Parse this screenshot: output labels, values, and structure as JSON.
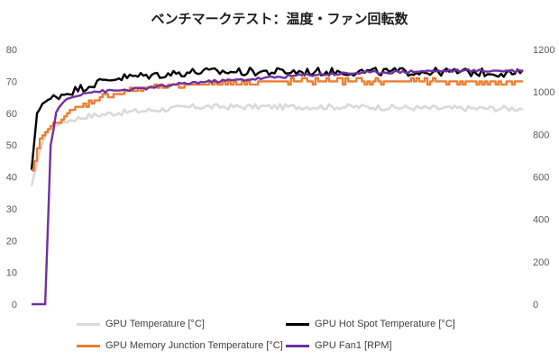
{
  "chart_data": {
    "type": "line",
    "title": "ベンチマークテスト：温度・ファン回転数",
    "y_left": {
      "min": 0,
      "max": 80,
      "ticks": [
        0,
        10,
        20,
        30,
        40,
        50,
        60,
        70,
        80
      ]
    },
    "y_right": {
      "min": 0,
      "max": 1200,
      "ticks": [
        0,
        200,
        400,
        600,
        800,
        1000,
        1200
      ]
    },
    "samples": 181,
    "series": [
      {
        "name": "GPU Temperature [°C]",
        "axis": "left",
        "color": "#d9d9d9",
        "profile": [
          [
            0,
            37
          ],
          [
            3,
            48
          ],
          [
            6,
            55
          ],
          [
            10,
            57
          ],
          [
            15,
            58
          ],
          [
            20,
            59
          ],
          [
            30,
            60
          ],
          [
            45,
            61
          ],
          [
            60,
            62
          ],
          [
            80,
            62
          ],
          [
            100,
            62
          ],
          [
            120,
            62
          ],
          [
            150,
            61.5
          ],
          [
            180,
            61.5
          ]
        ],
        "noise": 0.9
      },
      {
        "name": "GPU Hot Spot Temperature [°C]",
        "axis": "left",
        "color": "#000000",
        "profile": [
          [
            0,
            42
          ],
          [
            2,
            60
          ],
          [
            4,
            63
          ],
          [
            8,
            65
          ],
          [
            15,
            67
          ],
          [
            22,
            69
          ],
          [
            30,
            71
          ],
          [
            45,
            72
          ],
          [
            60,
            73
          ],
          [
            80,
            73
          ],
          [
            100,
            73
          ],
          [
            120,
            73
          ],
          [
            150,
            73
          ],
          [
            180,
            72.5
          ]
        ],
        "noise": 1.3
      },
      {
        "name": "GPU Memory Junction Temperature [°C]",
        "axis": "left",
        "color": "#ed7d31",
        "profile": [
          [
            0,
            42
          ],
          [
            3,
            52
          ],
          [
            6,
            55
          ],
          [
            10,
            58
          ],
          [
            15,
            61
          ],
          [
            20,
            63
          ],
          [
            25,
            65
          ],
          [
            35,
            67
          ],
          [
            45,
            68
          ],
          [
            60,
            69
          ],
          [
            80,
            70
          ],
          [
            100,
            70
          ],
          [
            120,
            70
          ],
          [
            150,
            70
          ],
          [
            180,
            69.5
          ]
        ],
        "noise": 0.7
      },
      {
        "name": "GPU Fan1 [RPM]",
        "axis": "right",
        "color": "#7030a0",
        "profile": [
          [
            0,
            0
          ],
          [
            4,
            0
          ],
          [
            5,
            0
          ],
          [
            7,
            750
          ],
          [
            9,
            900
          ],
          [
            12,
            960
          ],
          [
            20,
            1000
          ],
          [
            30,
            1005
          ],
          [
            40,
            1015
          ],
          [
            50,
            1030
          ],
          [
            60,
            1045
          ],
          [
            80,
            1060
          ],
          [
            100,
            1080
          ],
          [
            120,
            1090
          ],
          [
            150,
            1100
          ],
          [
            180,
            1100
          ]
        ],
        "noise": 7
      }
    ]
  }
}
